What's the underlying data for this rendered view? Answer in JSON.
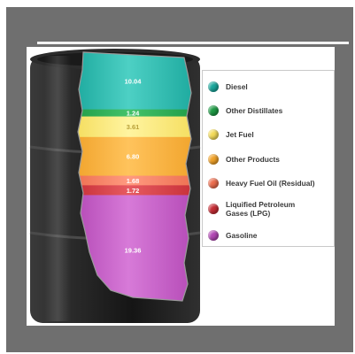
{
  "chart_data": {
    "type": "bar",
    "title": "",
    "categories": [
      "Diesel",
      "Other Distillates",
      "Jet Fuel",
      "Other Products",
      "Heavy Fuel Oil  (Residual)",
      "Liquified Petroleum\nGases (LPG)",
      "Gasoline"
    ],
    "values": [
      10.04,
      1.24,
      3.61,
      6.8,
      1.68,
      1.72,
      19.36
    ],
    "value_labels": [
      "10.04",
      "1.24",
      "3.61",
      "6.80",
      "1.68",
      "1.72",
      "19.36"
    ],
    "legend_position": "right",
    "grid": false
  },
  "colors": {
    "diesel": "#1aa79c",
    "other_distillates": "#1e9a45",
    "jet_fuel": "#f4dc5a",
    "other_products": "#f0a229",
    "heavy_fuel_oil": "#ec6d4e",
    "lpg": "#c52d35",
    "gasoline": "#b247b4",
    "barrel": "#1f1f1f"
  },
  "legend": {
    "items": [
      {
        "label": "Diesel",
        "icon": "teal-circle",
        "color": "#1aa79c"
      },
      {
        "label": "Other Distillates",
        "icon": "green-circle",
        "color": "#1e9a45"
      },
      {
        "label": "Jet Fuel",
        "icon": "yellow-circle",
        "color": "#f4dc5a"
      },
      {
        "label": "Other Products",
        "icon": "orange-circle",
        "color": "#f0a229"
      },
      {
        "label": "Heavy Fuel Oil  (Residual)",
        "icon": "salmon-circle",
        "color": "#ec6d4e"
      },
      {
        "label": "Liquified Petroleum\nGases (LPG)",
        "icon": "red-circle",
        "color": "#c52d35"
      },
      {
        "label": "Gasoline",
        "icon": "purple-circle",
        "color": "#b247b4"
      }
    ]
  }
}
